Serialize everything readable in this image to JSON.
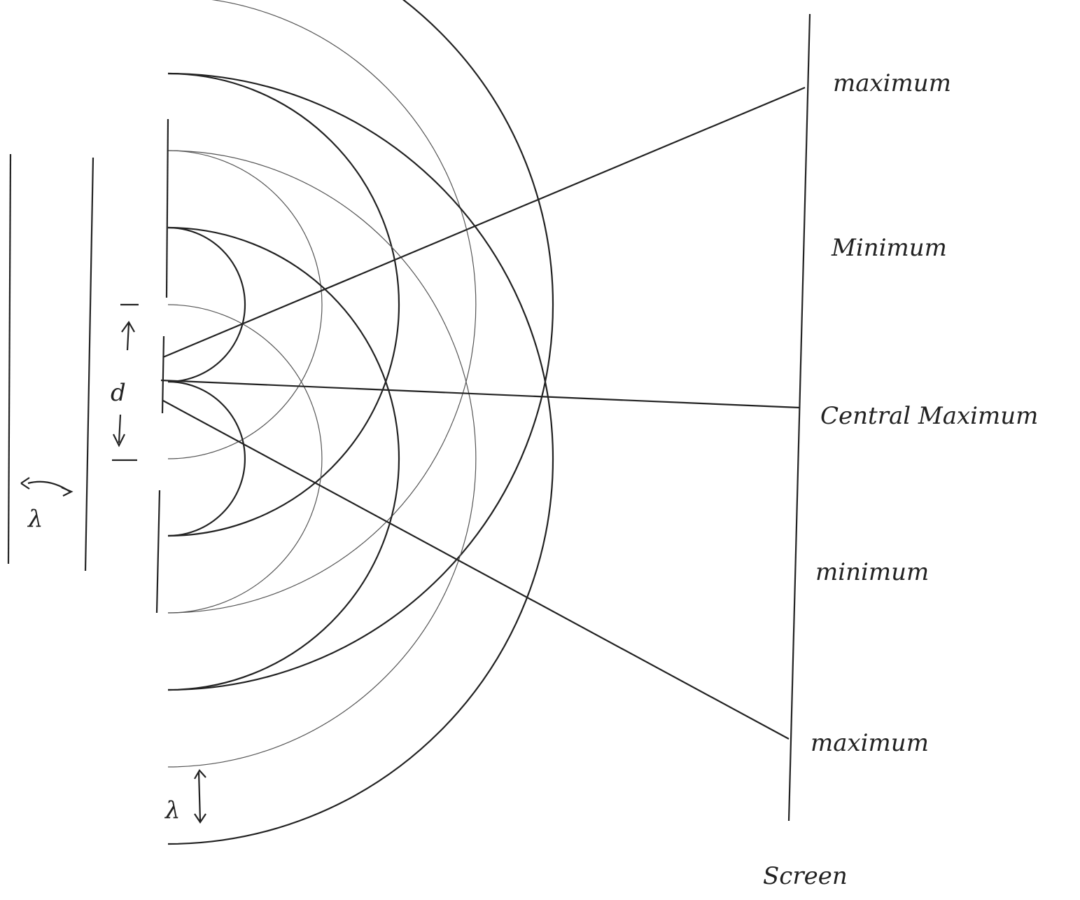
{
  "diagram": {
    "screen_labels": [
      "maximum",
      "Minimum",
      "Central Maximum",
      "minimum",
      "maximum"
    ],
    "screen_title": "Screen",
    "slit_separation": "d",
    "wavelength_left": "λ",
    "wavelength_bottom": "λ"
  }
}
